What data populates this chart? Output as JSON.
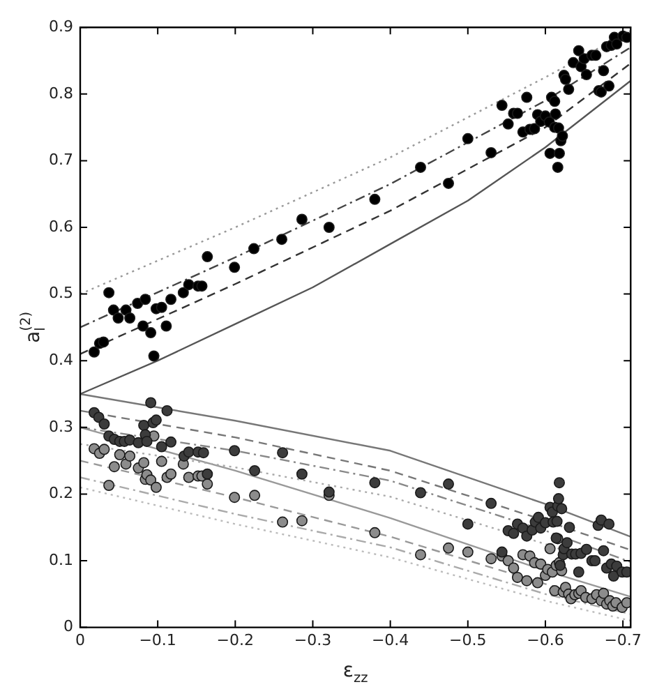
{
  "chart_data": {
    "type": "scatter",
    "xlabel": "ε$_{zz}$",
    "ylabel": "a$_{l}$$^{(2)}$",
    "xlim": [
      0,
      -0.71
    ],
    "ylim": [
      0,
      0.9
    ],
    "xticks": [
      0,
      -0.1,
      -0.2,
      -0.3,
      -0.4,
      -0.5,
      -0.6,
      -0.7
    ],
    "yticks": [
      0,
      0.1,
      0.2,
      0.3,
      0.4,
      0.5,
      0.6,
      0.7,
      0.8,
      0.9
    ],
    "grid": false,
    "legend": false,
    "series": [
      {
        "type": "line",
        "color": "#555555",
        "line_style": "solid",
        "marker": "none",
        "x": [
          0,
          -0.1,
          -0.2,
          -0.3,
          -0.4,
          -0.5,
          -0.6,
          -0.71
        ],
        "values": [
          0.35,
          0.4,
          0.455,
          0.51,
          0.575,
          0.64,
          0.72,
          0.82
        ]
      },
      {
        "type": "line",
        "color": "#333333",
        "line_style": "dashed",
        "marker": "none",
        "x": [
          0,
          -0.2,
          -0.4,
          -0.6,
          -0.71
        ],
        "values": [
          0.41,
          0.515,
          0.625,
          0.75,
          0.846
        ]
      },
      {
        "type": "line",
        "color": "#444444",
        "line_style": "dashdot",
        "marker": "none",
        "x": [
          0,
          -0.2,
          -0.4,
          -0.6,
          -0.71
        ],
        "values": [
          0.45,
          0.555,
          0.665,
          0.79,
          0.87
        ]
      },
      {
        "type": "line",
        "color": "#999999",
        "line_style": "dotted",
        "marker": "none",
        "x": [
          0,
          -0.2,
          -0.4,
          -0.6,
          -0.71
        ],
        "values": [
          0.5,
          0.6,
          0.705,
          0.825,
          0.895
        ]
      },
      {
        "type": "line",
        "color": "#777777",
        "line_style": "solid",
        "marker": "none",
        "x": [
          0,
          -0.2,
          -0.4,
          -0.6,
          -0.71
        ],
        "values": [
          0.35,
          0.31,
          0.265,
          0.185,
          0.136
        ]
      },
      {
        "type": "line",
        "color": "#777777",
        "line_style": "dashed",
        "marker": "none",
        "x": [
          0,
          -0.2,
          -0.4,
          -0.6,
          -0.71
        ],
        "values": [
          0.325,
          0.285,
          0.235,
          0.16,
          0.116
        ]
      },
      {
        "type": "line",
        "color": "#888888",
        "line_style": "dashdot",
        "marker": "none",
        "x": [
          0,
          -0.2,
          -0.4,
          -0.6,
          -0.71
        ],
        "values": [
          0.3,
          0.265,
          0.22,
          0.145,
          0.098
        ]
      },
      {
        "type": "line",
        "color": "#aaaaaa",
        "line_style": "dotted",
        "marker": "none",
        "x": [
          0,
          -0.2,
          -0.4,
          -0.6,
          -0.71
        ],
        "values": [
          0.275,
          0.24,
          0.196,
          0.125,
          0.08
        ]
      },
      {
        "type": "line",
        "color": "#999999",
        "line_style": "solid",
        "marker": "none",
        "x": [
          0,
          -0.2,
          -0.4,
          -0.6,
          -0.71
        ],
        "values": [
          0.3,
          0.235,
          0.164,
          0.085,
          0.046
        ]
      },
      {
        "type": "line",
        "color": "#999999",
        "line_style": "dashed",
        "marker": "none",
        "x": [
          0,
          -0.2,
          -0.4,
          -0.6,
          -0.71
        ],
        "values": [
          0.25,
          0.195,
          0.136,
          0.065,
          0.03
        ]
      },
      {
        "type": "line",
        "color": "#aaaaaa",
        "line_style": "dashdot",
        "marker": "none",
        "x": [
          0,
          -0.2,
          -0.4,
          -0.6,
          -0.71
        ],
        "values": [
          0.225,
          0.17,
          0.12,
          0.05,
          0.02
        ]
      },
      {
        "type": "line",
        "color": "#bbbbbb",
        "line_style": "dotted",
        "marker": "none",
        "x": [
          0,
          -0.2,
          -0.4,
          -0.6,
          -0.71
        ],
        "values": [
          0.21,
          0.155,
          0.105,
          0.04,
          0.01
        ]
      },
      {
        "color": "#000000",
        "marker": "circle",
        "x": [
          -0.018,
          -0.025,
          -0.03,
          -0.037,
          -0.043,
          -0.049,
          -0.059,
          -0.064,
          -0.074,
          -0.081,
          -0.084,
          -0.091,
          -0.095,
          -0.098,
          -0.105,
          -0.111,
          -0.117,
          -0.133,
          -0.14,
          -0.152,
          -0.157,
          -0.164,
          -0.199,
          -0.224,
          -0.26,
          -0.286,
          -0.321,
          -0.38,
          -0.439,
          -0.475,
          -0.5,
          -0.53,
          -0.544,
          -0.552,
          -0.559,
          -0.564,
          -0.571,
          -0.576,
          -0.58,
          -0.586,
          -0.59,
          -0.594,
          -0.6,
          -0.605,
          -0.606,
          -0.608,
          -0.612,
          -0.612,
          -0.613,
          -0.616,
          -0.617,
          -0.618,
          -0.62,
          -0.622,
          -0.624,
          -0.626,
          -0.63,
          -0.636,
          -0.643,
          -0.646,
          -0.65,
          -0.653,
          -0.66,
          -0.665,
          -0.669,
          -0.672,
          -0.675,
          -0.679,
          -0.682,
          -0.685,
          -0.689,
          -0.692,
          -0.7,
          -0.705
        ],
        "values": [
          0.413,
          0.426,
          0.428,
          0.502,
          0.476,
          0.464,
          0.476,
          0.464,
          0.486,
          0.452,
          0.492,
          0.442,
          0.407,
          0.478,
          0.48,
          0.452,
          0.492,
          0.502,
          0.514,
          0.512,
          0.512,
          0.556,
          0.54,
          0.568,
          0.582,
          0.612,
          0.6,
          0.642,
          0.69,
          0.666,
          0.733,
          0.712,
          0.783,
          0.755,
          0.771,
          0.771,
          0.743,
          0.795,
          0.747,
          0.748,
          0.769,
          0.759,
          0.767,
          0.758,
          0.711,
          0.795,
          0.789,
          0.75,
          0.77,
          0.69,
          0.749,
          0.711,
          0.73,
          0.737,
          0.828,
          0.822,
          0.807,
          0.847,
          0.865,
          0.841,
          0.853,
          0.829,
          0.858,
          0.858,
          0.805,
          0.803,
          0.835,
          0.871,
          0.812,
          0.873,
          0.885,
          0.875,
          0.887,
          0.885
        ]
      },
      {
        "color": "#3c3c3c",
        "marker": "circle",
        "x": [
          -0.018,
          -0.024,
          -0.031,
          -0.037,
          -0.044,
          -0.051,
          -0.057,
          -0.064,
          -0.075,
          -0.082,
          -0.084,
          -0.086,
          -0.091,
          -0.094,
          -0.098,
          -0.105,
          -0.112,
          -0.117,
          -0.134,
          -0.14,
          -0.152,
          -0.159,
          -0.164,
          -0.199,
          -0.225,
          -0.261,
          -0.286,
          -0.321,
          -0.38,
          -0.439,
          -0.475,
          -0.5,
          -0.53,
          -0.544,
          -0.552,
          -0.559,
          -0.564,
          -0.571,
          -0.576,
          -0.583,
          -0.587,
          -0.591,
          -0.594,
          -0.6,
          -0.606,
          -0.609,
          -0.61,
          -0.614,
          -0.615,
          -0.616,
          -0.617,
          -0.618,
          -0.619,
          -0.621,
          -0.623,
          -0.624,
          -0.628,
          -0.631,
          -0.634,
          -0.639,
          -0.643,
          -0.646,
          -0.653,
          -0.66,
          -0.664,
          -0.668,
          -0.672,
          -0.675,
          -0.679,
          -0.682,
          -0.685,
          -0.688,
          -0.692,
          -0.699,
          -0.705
        ],
        "values": [
          0.322,
          0.315,
          0.305,
          0.287,
          0.282,
          0.279,
          0.279,
          0.281,
          0.277,
          0.303,
          0.289,
          0.279,
          0.337,
          0.307,
          0.311,
          0.271,
          0.325,
          0.278,
          0.257,
          0.263,
          0.263,
          0.262,
          0.23,
          0.265,
          0.235,
          0.262,
          0.23,
          0.203,
          0.217,
          0.202,
          0.215,
          0.155,
          0.186,
          0.113,
          0.145,
          0.141,
          0.155,
          0.149,
          0.137,
          0.146,
          0.158,
          0.165,
          0.149,
          0.157,
          0.18,
          0.173,
          0.158,
          0.134,
          0.159,
          0.182,
          0.193,
          0.217,
          0.093,
          0.178,
          0.109,
          0.118,
          0.127,
          0.15,
          0.11,
          0.11,
          0.083,
          0.111,
          0.117,
          0.1,
          0.1,
          0.153,
          0.161,
          0.115,
          0.089,
          0.155,
          0.095,
          0.077,
          0.092,
          0.083,
          0.083
        ]
      },
      {
        "color": "#8c8c8c",
        "marker": "circle",
        "x": [
          -0.018,
          -0.025,
          -0.031,
          -0.037,
          -0.044,
          -0.051,
          -0.059,
          -0.064,
          -0.075,
          -0.082,
          -0.084,
          -0.086,
          -0.091,
          -0.095,
          -0.098,
          -0.105,
          -0.112,
          -0.117,
          -0.133,
          -0.14,
          -0.152,
          -0.157,
          -0.164,
          -0.199,
          -0.225,
          -0.261,
          -0.286,
          -0.321,
          -0.38,
          -0.439,
          -0.475,
          -0.5,
          -0.53,
          -0.544,
          -0.552,
          -0.559,
          -0.564,
          -0.571,
          -0.576,
          -0.58,
          -0.586,
          -0.59,
          -0.594,
          -0.6,
          -0.603,
          -0.606,
          -0.609,
          -0.612,
          -0.614,
          -0.616,
          -0.618,
          -0.621,
          -0.623,
          -0.626,
          -0.63,
          -0.633,
          -0.638,
          -0.643,
          -0.646,
          -0.652,
          -0.66,
          -0.666,
          -0.672,
          -0.675,
          -0.679,
          -0.683,
          -0.687,
          -0.691,
          -0.699,
          -0.705
        ],
        "values": [
          0.268,
          0.261,
          0.267,
          0.213,
          0.241,
          0.259,
          0.245,
          0.257,
          0.239,
          0.247,
          0.222,
          0.229,
          0.221,
          0.287,
          0.21,
          0.249,
          0.225,
          0.23,
          0.245,
          0.225,
          0.227,
          0.227,
          0.215,
          0.195,
          0.198,
          0.158,
          0.16,
          0.198,
          0.142,
          0.109,
          0.119,
          0.113,
          0.103,
          0.107,
          0.1,
          0.089,
          0.075,
          0.109,
          0.07,
          0.107,
          0.097,
          0.067,
          0.095,
          0.078,
          0.087,
          0.118,
          0.083,
          0.055,
          0.093,
          0.133,
          0.097,
          0.085,
          0.053,
          0.06,
          0.05,
          0.043,
          0.049,
          0.051,
          0.055,
          0.045,
          0.043,
          0.049,
          0.04,
          0.051,
          0.035,
          0.04,
          0.032,
          0.037,
          0.03,
          0.037
        ]
      }
    ]
  }
}
